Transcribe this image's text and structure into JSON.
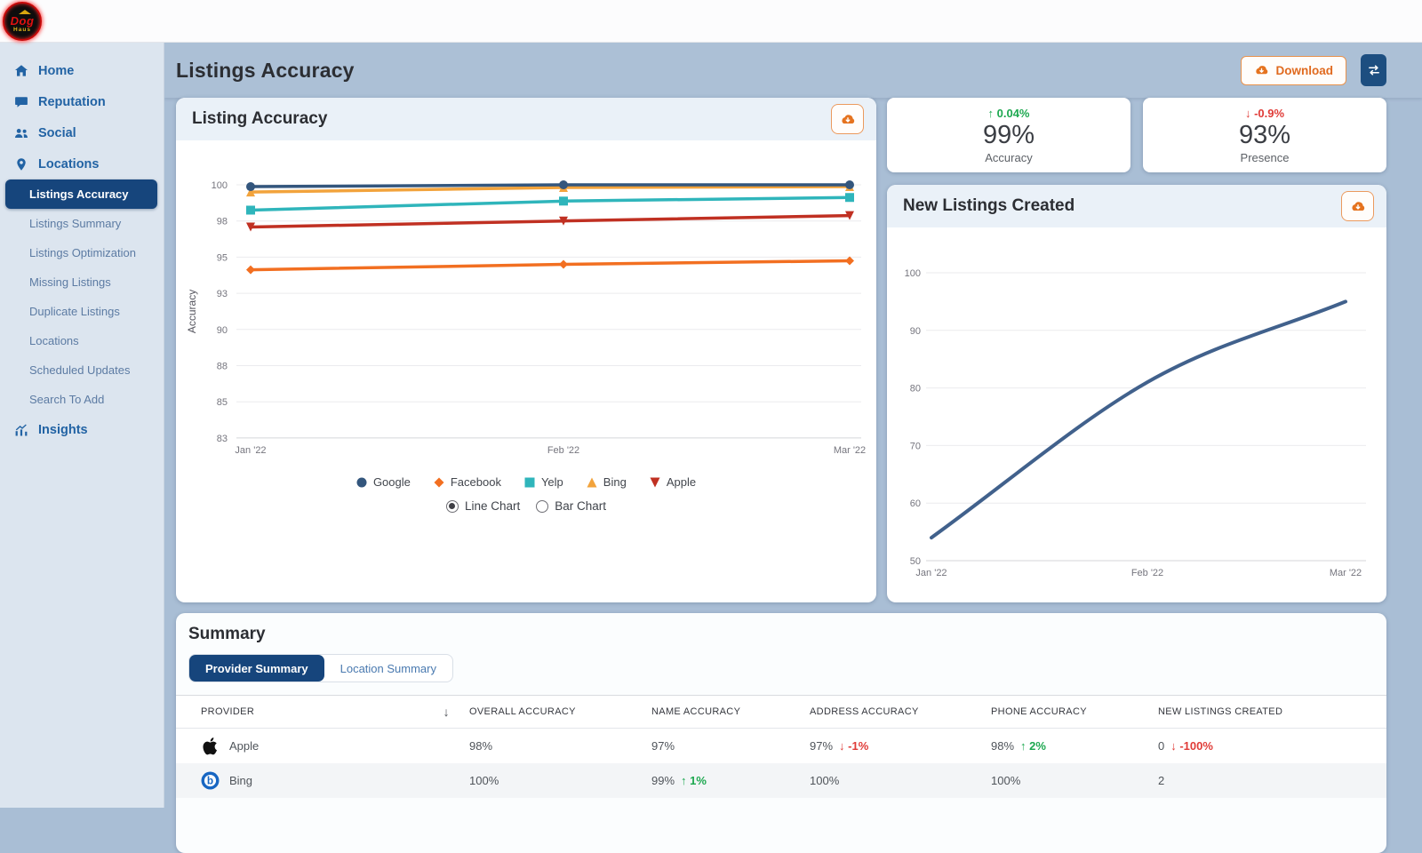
{
  "topbar": {
    "logo": {
      "line1": "Dog",
      "line2": "Haus"
    }
  },
  "sidebar": {
    "main_items": [
      {
        "label": "Home",
        "icon": "home-icon"
      },
      {
        "label": "Reputation",
        "icon": "comment-icon"
      },
      {
        "label": "Social",
        "icon": "users-icon"
      },
      {
        "label": "Locations",
        "icon": "map-pin-icon"
      }
    ],
    "locations_sub_items": [
      {
        "label": "Listings Accuracy",
        "active": true
      },
      {
        "label": "Listings Summary",
        "active": false
      },
      {
        "label": "Listings Optimization",
        "active": false
      },
      {
        "label": "Missing Listings",
        "active": false
      },
      {
        "label": "Duplicate Listings",
        "active": false
      },
      {
        "label": "Locations",
        "active": false
      },
      {
        "label": "Scheduled Updates",
        "active": false
      },
      {
        "label": "Search To Add",
        "active": false
      }
    ],
    "footer_items": [
      {
        "label": "Insights",
        "icon": "insights-icon"
      }
    ]
  },
  "header": {
    "title": "Listings Accuracy",
    "download_button": "Download"
  },
  "stat_cards": [
    {
      "direction": "up",
      "delta": "0.04%",
      "value": "99%",
      "label": "Accuracy"
    },
    {
      "direction": "down",
      "delta": "-0.9%",
      "value": "93%",
      "label": "Presence"
    }
  ],
  "accuracy_card": {
    "title": "Listing Accuracy",
    "radio_options": [
      {
        "label": "Line Chart",
        "selected": true
      },
      {
        "label": "Bar Chart",
        "selected": false
      }
    ]
  },
  "new_listings_card": {
    "title": "New Listings Created"
  },
  "summary_card": {
    "title": "Summary",
    "tabs": [
      {
        "label": "Provider Summary",
        "active": true
      },
      {
        "label": "Location Summary",
        "active": false
      }
    ],
    "table": {
      "columns": [
        "Provider",
        "Overall Accuracy",
        "Name Accuracy",
        "Address Accuracy",
        "Phone Accuracy",
        "New Listings Created"
      ],
      "rows": [
        {
          "provider": "Apple",
          "icon": "apple-logo-icon",
          "cells": [
            {
              "value": "98%"
            },
            {
              "value": "97%"
            },
            {
              "value": "97%",
              "dir": "down",
              "delta": "-1%"
            },
            {
              "value": "98%",
              "dir": "up",
              "delta": "2%"
            },
            {
              "value": "0",
              "dir": "down",
              "delta": "-100%"
            }
          ]
        },
        {
          "provider": "Bing",
          "icon": "bing-logo-icon",
          "cells": [
            {
              "value": "100%"
            },
            {
              "value": "99%",
              "dir": "up",
              "delta": "1%"
            },
            {
              "value": "100%"
            },
            {
              "value": "100%"
            },
            {
              "value": "2"
            }
          ]
        }
      ]
    }
  },
  "chart_data": [
    {
      "type": "line",
      "title": "Listing Accuracy",
      "ylabel": "Accuracy",
      "x": [
        "Jan '22",
        "Feb '22",
        "Mar '22"
      ],
      "yticks": [
        100,
        98,
        95,
        93,
        90,
        88,
        85,
        83
      ],
      "grid": true,
      "legend_position": "bottom",
      "series": [
        {
          "name": "Google",
          "color": "#33567d",
          "marker": "circle",
          "values": [
            99.9,
            100,
            100
          ]
        },
        {
          "name": "Facebook",
          "color": "#f26f21",
          "marker": "diamond",
          "values": [
            94.3,
            94.6,
            94.8
          ]
        },
        {
          "name": "Yelp",
          "color": "#2fb5bb",
          "marker": "square",
          "values": [
            98.6,
            99.1,
            99.3
          ]
        },
        {
          "name": "Bing",
          "color": "#f2a33c",
          "marker": "triangle-up",
          "values": [
            99.6,
            99.85,
            99.9
          ]
        },
        {
          "name": "Apple",
          "color": "#c03022",
          "marker": "triangle-down",
          "values": [
            97.5,
            98,
            98.3
          ]
        }
      ]
    },
    {
      "type": "line",
      "title": "New Listings Created",
      "x": [
        "Jan '22",
        "Feb '22",
        "Mar '22"
      ],
      "yticks": [
        100,
        90,
        80,
        70,
        60,
        50
      ],
      "ylim": [
        50,
        100
      ],
      "grid": true,
      "series": [
        {
          "name": "New Listings Created",
          "color": "#41618c",
          "values": [
            54,
            81,
            95
          ]
        }
      ]
    }
  ]
}
